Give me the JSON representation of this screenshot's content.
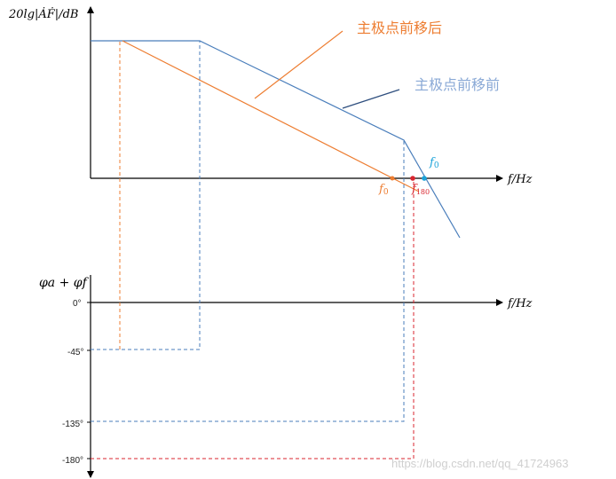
{
  "upper": {
    "y_axis_label": "20lg|ȦḞ|/dB",
    "x_axis_label": "f/Hz",
    "annotation_after": "主极点前移后",
    "annotation_before": "主极点前移前",
    "f0_blue_label": "f",
    "f0_blue_sub": "0",
    "f0_orange_label": "f",
    "f0_orange_sub": "0",
    "f180_label": "f",
    "f180_sub": "180"
  },
  "lower": {
    "y_axis_label": "φa + φf",
    "x_axis_label": "f/Hz",
    "ticks": [
      "0°",
      "-45°",
      "-135°",
      "-180°"
    ]
  },
  "watermark": "https://blog.csdn.net/qq_41724963",
  "colors": {
    "axis": "#000000",
    "before": "#4a7ebb",
    "after": "#ed7d31",
    "f0_blue": "#1aa3d9",
    "f180": "#d9262f"
  }
}
